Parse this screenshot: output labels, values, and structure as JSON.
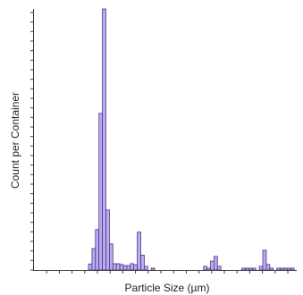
{
  "chart_data": {
    "type": "bar",
    "xlabel": "Particle Size (µm)",
    "ylabel": "Count per Container",
    "x_tick_count": 20,
    "y_tick_count": 27,
    "grid": false,
    "bar_fill": "#b4aef0",
    "bar_stroke": "#5a2f86",
    "values": [
      0,
      0,
      0,
      0,
      0,
      0,
      0,
      0,
      0,
      0,
      2.3,
      8.2,
      15.5,
      60,
      100,
      23,
      10,
      2.4,
      2.4,
      2.1,
      1.7,
      1.7,
      2.4,
      2,
      14.5,
      5.7,
      1.4,
      0,
      0.7,
      0,
      0,
      0,
      0,
      0,
      0,
      0,
      0,
      0,
      0,
      0,
      0,
      0,
      0,
      1.4,
      0.7,
      3.4,
      5.2,
      1.4,
      0,
      0,
      0,
      0,
      0,
      0,
      0.7,
      0.7,
      0.7,
      0.7,
      0,
      1.4,
      7.6,
      2.1,
      0.7,
      0,
      0.7,
      0.7,
      0.7,
      0.7,
      0.7,
      0.7,
      1,
      1.7,
      4.8,
      1.4,
      0.7,
      0.7,
      0.7,
      0.7,
      0.7,
      0.7,
      0.3,
      0.3,
      0,
      0.7,
      0.3,
      0,
      0,
      0,
      0,
      0
    ]
  }
}
